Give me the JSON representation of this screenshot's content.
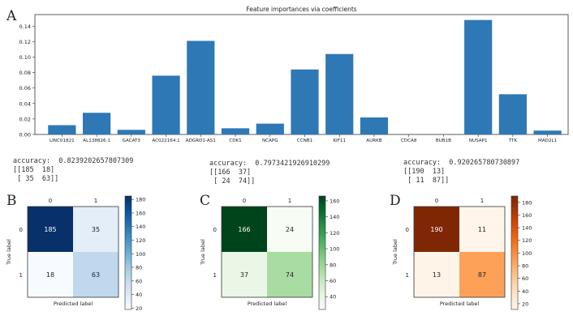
{
  "panel_labels": [
    "A",
    "B",
    "C",
    "D"
  ],
  "chart_data": [
    {
      "type": "bar",
      "title": "Feature importances via coefficients",
      "categories": [
        "LINC01821",
        "AL138826.1",
        "GACAT3",
        "AC022164.1",
        "ADGRD1-AS1",
        "CDK1",
        "NCAPG",
        "CCNB1",
        "KIF11",
        "AURKB",
        "CDCA8",
        "BUB1B",
        "NUSAP1",
        "TTK",
        "MAD2L1"
      ],
      "values": [
        0.012,
        0.028,
        0.006,
        0.076,
        0.121,
        0.008,
        0.014,
        0.084,
        0.104,
        0.022,
        0.0,
        0.0,
        0.148,
        0.052,
        0.005
      ],
      "yticks": [
        "0.00",
        "0.02",
        "0.04",
        "0.06",
        "0.08",
        "0.10",
        "0.12",
        "0.14"
      ],
      "ylim": [
        0,
        0.155
      ],
      "color": "#2e78b5",
      "xlabel": "",
      "ylabel": ""
    },
    {
      "type": "heatmap",
      "colormap": "Blues",
      "x_ticks": [
        "0",
        "1"
      ],
      "y_ticks": [
        "0",
        "1"
      ],
      "xlabel": "Predicted label",
      "ylabel": "True label",
      "matrix": [
        [
          185,
          35
        ],
        [
          18,
          63
        ]
      ],
      "colorbar_ticks": [
        "180",
        "160",
        "140",
        "120",
        "100",
        "80",
        "60",
        "40",
        "20"
      ],
      "colorbar_range": [
        18,
        185
      ]
    },
    {
      "type": "heatmap",
      "colormap": "Greens",
      "x_ticks": [
        "0",
        "1"
      ],
      "y_ticks": [
        "0",
        "1"
      ],
      "xlabel": "Predicted label",
      "ylabel": "True label",
      "matrix": [
        [
          166,
          24
        ],
        [
          37,
          74
        ]
      ],
      "colorbar_ticks": [
        "160",
        "140",
        "120",
        "100",
        "80",
        "60",
        "40"
      ],
      "colorbar_range": [
        24,
        166
      ]
    },
    {
      "type": "heatmap",
      "colormap": "Oranges",
      "x_ticks": [
        "0",
        "1"
      ],
      "y_ticks": [
        "0",
        "1"
      ],
      "xlabel": "Predicted label",
      "ylabel": "True label",
      "matrix": [
        [
          190,
          11
        ],
        [
          13,
          87
        ]
      ],
      "colorbar_ticks": [
        "180",
        "160",
        "140",
        "120",
        "100",
        "80",
        "60",
        "40",
        "20"
      ],
      "colorbar_range": [
        11,
        190
      ]
    }
  ],
  "accuracy_blocks": [
    {
      "text": "accuracy:  0.8239202657807309\n[[185  18]\n [ 35  63]]"
    },
    {
      "text": "accuracy:  0.7973421926910299\n[[166  37]\n [ 24  74]]"
    },
    {
      "text": "accuracy:  0.920265780730897\n[[190  13]\n [ 11  87]]"
    }
  ]
}
